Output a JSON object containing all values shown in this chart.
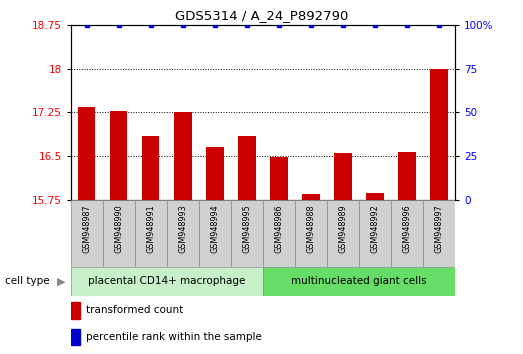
{
  "title": "GDS5314 / A_24_P892790",
  "samples": [
    "GSM948987",
    "GSM948990",
    "GSM948991",
    "GSM948993",
    "GSM948994",
    "GSM948995",
    "GSM948986",
    "GSM948988",
    "GSM948989",
    "GSM948992",
    "GSM948996",
    "GSM948997"
  ],
  "transformed_counts": [
    17.35,
    17.28,
    16.85,
    17.25,
    16.65,
    16.85,
    16.48,
    15.85,
    16.55,
    15.87,
    16.57,
    18.0
  ],
  "percentile_ranks": [
    100,
    100,
    100,
    100,
    100,
    100,
    100,
    100,
    100,
    100,
    100,
    100
  ],
  "group1_label": "placental CD14+ macrophage",
  "group2_label": "multinucleated giant cells",
  "group1_count": 6,
  "group2_count": 6,
  "ylim_left": [
    15.75,
    18.75
  ],
  "ylim_right": [
    0,
    100
  ],
  "yticks_left": [
    15.75,
    16.5,
    17.25,
    18.0,
    18.75
  ],
  "yticks_right": [
    0,
    25,
    50,
    75,
    100
  ],
  "bar_color": "#cc0000",
  "dot_color": "#0000cc",
  "group1_bg": "#c8f0c8",
  "group2_bg": "#66dd66",
  "sample_bg": "#d0d0d0",
  "legend_bar_label": "transformed count",
  "legend_dot_label": "percentile rank within the sample",
  "cell_type_label": "cell type",
  "bg_color": "#ffffff"
}
